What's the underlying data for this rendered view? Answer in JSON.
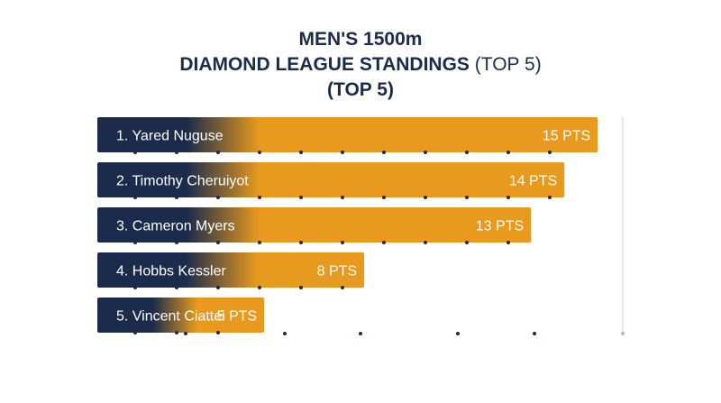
{
  "title": {
    "line1": "MEN'S 1500m",
    "line2_bold": "DIAMOND LEAGUE STANDINGS",
    "line2_light": " (TOP 5)",
    "line3": "(TOP 5)"
  },
  "colors": {
    "navy": "#1b2b4b",
    "gold": "#e89a1e",
    "text": "#ffffff",
    "title": "#1c2b4a",
    "axis": "#d0d0d0",
    "dot": "#1b2b4b"
  },
  "chart_data": {
    "type": "bar",
    "orientation": "horizontal",
    "categories": [
      "1. Yared Nuguse",
      "2. Timothy Cheruiyot",
      "3. Cameron Myers",
      "4. Hobbs Kessler",
      "5. Vincent Ciattei"
    ],
    "values": [
      15,
      14,
      13,
      8,
      5
    ],
    "value_labels": [
      "15 PTS",
      "14 PTS",
      "13 PTS",
      "8 PTS",
      "5 PTS"
    ],
    "xlim": [
      0,
      15.4
    ],
    "grid": false
  }
}
